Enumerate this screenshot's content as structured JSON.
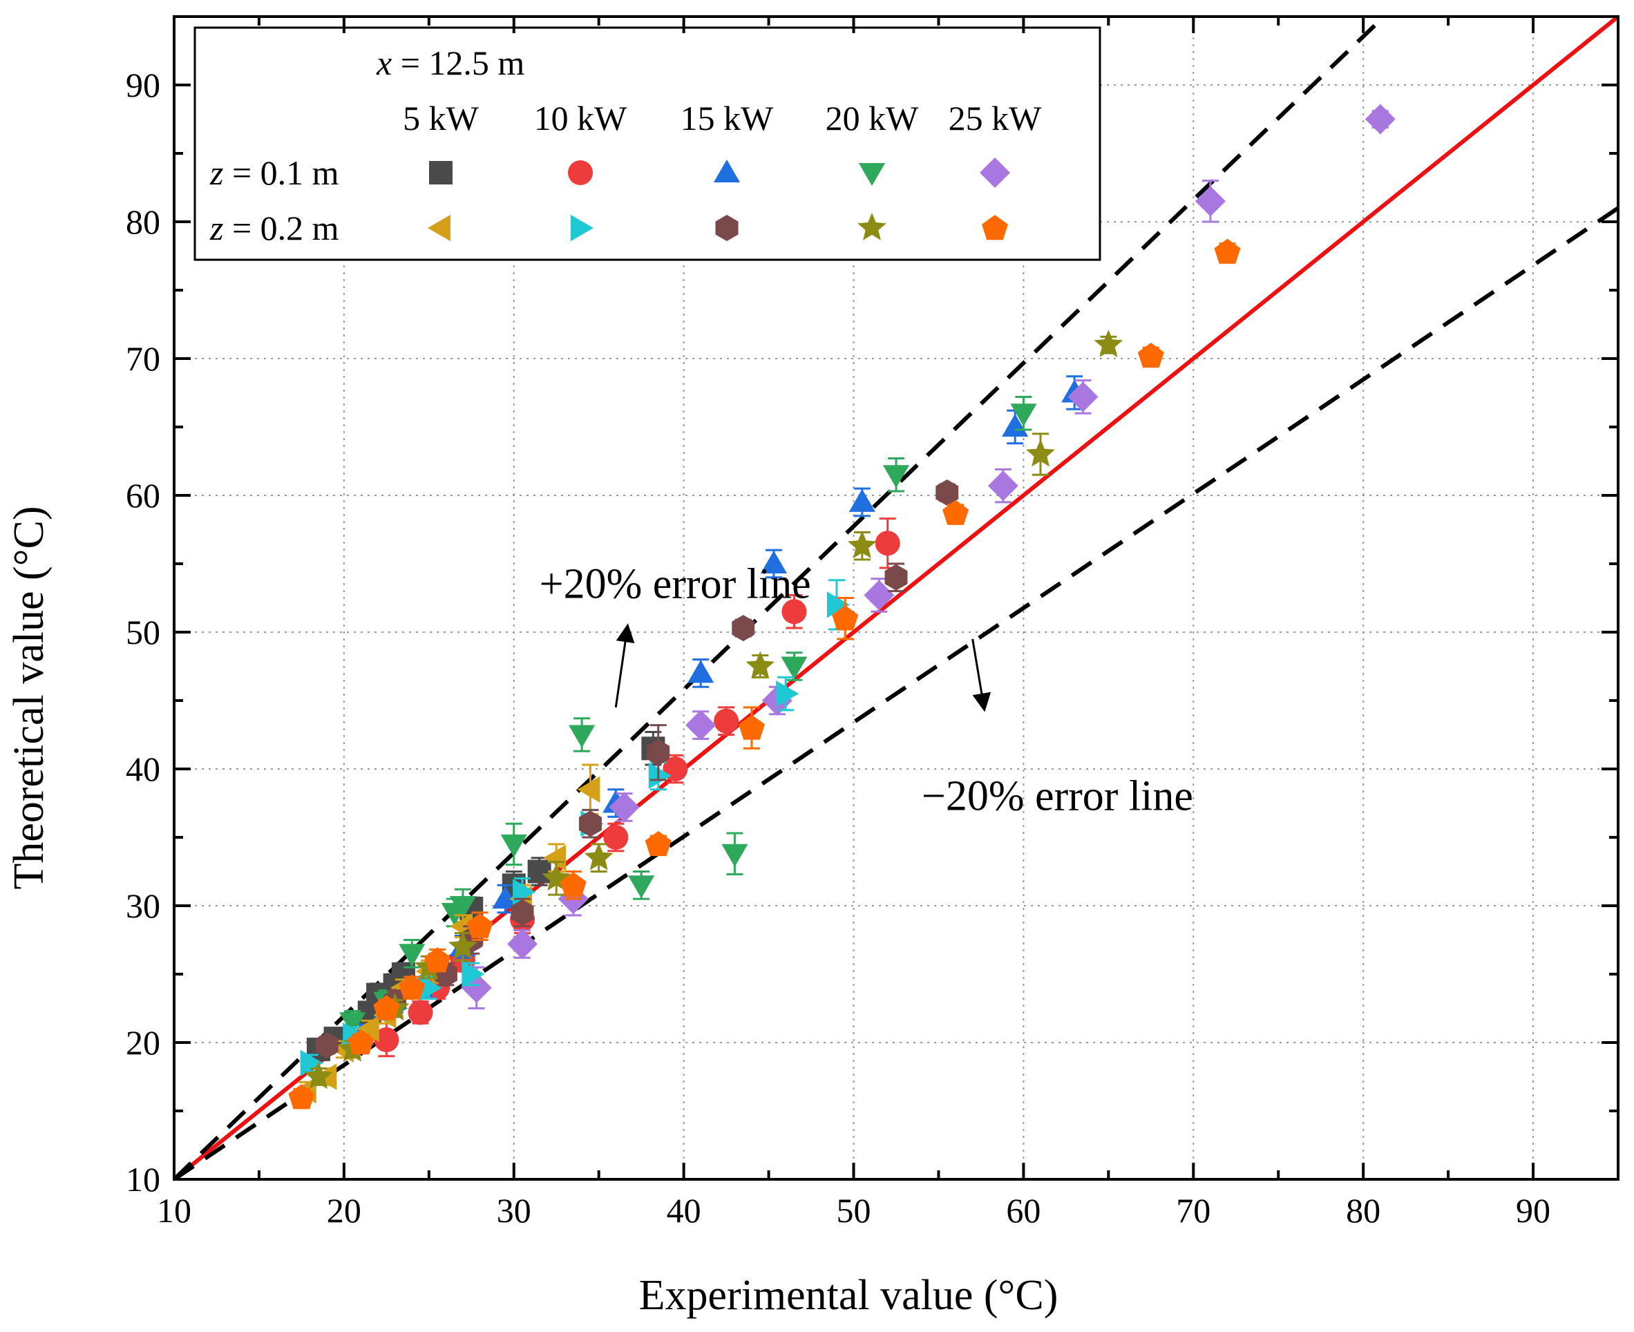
{
  "chart_data": {
    "type": "scatter",
    "title": "",
    "xlabel": "Experimental value (°C)",
    "ylabel": "Theoretical value (°C)",
    "xlim": [
      10,
      95
    ],
    "ylim": [
      10,
      95
    ],
    "xticks": [
      "10",
      "20",
      "30",
      "40",
      "50",
      "60",
      "70",
      "80",
      "90"
    ],
    "yticks": [
      "10",
      "20",
      "30",
      "40",
      "50",
      "60",
      "70",
      "80",
      "90"
    ],
    "grid": true,
    "legend": {
      "position": "top-left",
      "title": "x = 12.5 m",
      "title_var": "x",
      "title_rest": " = 12.5 m",
      "columns": [
        "5 kW",
        "10 kW",
        "15 kW",
        "20 kW",
        "25 kW"
      ],
      "rows": [
        {
          "var": "z",
          "label": " = 0.1 m"
        },
        {
          "var": "z",
          "label": " = 0.2 m"
        }
      ]
    },
    "lines": [
      {
        "name": "y = x",
        "points": [
          [
            10,
            10
          ],
          [
            95,
            95
          ]
        ],
        "color": "#ee1111",
        "style": "solid"
      },
      {
        "name": "+20% error line",
        "points": [
          [
            10,
            10
          ],
          [
            80.8,
            94.5
          ]
        ],
        "color": "#000000",
        "style": "dashed"
      },
      {
        "name": "-20% error line",
        "points": [
          [
            10,
            10
          ],
          [
            95,
            81
          ]
        ],
        "color": "#000000",
        "style": "dashed"
      }
    ],
    "annotations": [
      {
        "text": "+20% error line",
        "x": 31.5,
        "y": 52.5,
        "arrow_from": [
          36,
          44.5
        ],
        "arrow_to": [
          36.7,
          50.5
        ]
      },
      {
        "text": "−20% error line",
        "x": 54,
        "y": 37,
        "arrow_from": [
          57,
          49.5
        ],
        "arrow_to": [
          57.7,
          44.3
        ]
      }
    ],
    "series": [
      {
        "name": "z = 0.1 m, 5 kW",
        "marker": "square",
        "color": "#4a4a4a",
        "points": [
          [
            18.5,
            19.5,
            0.6
          ],
          [
            19.5,
            20.3,
            0.6
          ],
          [
            21.5,
            22.2,
            0.6
          ],
          [
            22,
            23.5,
            0.8
          ],
          [
            23,
            24.2,
            0.8
          ],
          [
            23.5,
            25,
            0.8
          ],
          [
            27.5,
            28,
            0.8
          ],
          [
            27.5,
            29.8,
            0.8
          ],
          [
            30,
            31.5,
            1
          ],
          [
            31.5,
            32.5,
            1
          ],
          [
            38.2,
            41.5,
            1.2
          ]
        ]
      },
      {
        "name": "z = 0.1 m, 10 kW",
        "marker": "circle",
        "color": "#ee3b3b",
        "points": [
          [
            22.5,
            20.2,
            1.2
          ],
          [
            24.5,
            22.2,
            0.8
          ],
          [
            25.5,
            24,
            0.8
          ],
          [
            27,
            26,
            0.8
          ],
          [
            30.5,
            29,
            1
          ],
          [
            36,
            35,
            1
          ],
          [
            39.5,
            40,
            1
          ],
          [
            42.5,
            43.5,
            1
          ],
          [
            46.5,
            51.5,
            1.2
          ],
          [
            52,
            56.5,
            1.8
          ]
        ]
      },
      {
        "name": "z = 0.1 m, 15 kW",
        "marker": "triangle-up",
        "color": "#1f6fe0",
        "points": [
          [
            21,
            20.5,
            0.8
          ],
          [
            22.5,
            22.5,
            0.8
          ],
          [
            24.5,
            24,
            0.8
          ],
          [
            27,
            27,
            0.8
          ],
          [
            29.5,
            30.5,
            1
          ],
          [
            36,
            37.5,
            1
          ],
          [
            41,
            47,
            1
          ],
          [
            45.3,
            55,
            1
          ],
          [
            50.5,
            59.5,
            1
          ],
          [
            59.5,
            65,
            1.2
          ],
          [
            63,
            67.5,
            1.2
          ]
        ]
      },
      {
        "name": "z = 0.1 m, 20 kW",
        "marker": "triangle-down",
        "color": "#2ea85a",
        "points": [
          [
            20.5,
            21.5,
            0.8
          ],
          [
            22.5,
            23,
            0.8
          ],
          [
            24,
            26.5,
            1
          ],
          [
            26.5,
            29.5,
            1
          ],
          [
            27,
            30,
            1.2
          ],
          [
            30,
            34.5,
            1.5
          ],
          [
            34,
            42.5,
            1.2
          ],
          [
            37.5,
            31.5,
            1
          ],
          [
            43,
            33.8,
            1.5
          ],
          [
            46.5,
            47.5,
            1
          ],
          [
            52.5,
            61.5,
            1.2
          ],
          [
            60,
            66,
            1.2
          ]
        ]
      },
      {
        "name": "z = 0.1 m, 25 kW",
        "marker": "diamond",
        "color": "#a877e0",
        "points": [
          [
            27.8,
            24,
            1.5
          ],
          [
            30.5,
            27.2,
            1
          ],
          [
            33.5,
            30.5,
            1.2
          ],
          [
            36.5,
            37.2,
            1
          ],
          [
            41,
            43.2,
            1
          ],
          [
            45.5,
            45,
            1
          ],
          [
            51.5,
            52.7,
            1.2
          ],
          [
            58.8,
            60.7,
            1.2
          ],
          [
            63.5,
            67.2,
            1.2
          ],
          [
            71,
            81.5,
            1.5
          ],
          [
            81,
            87.5,
            0.6
          ]
        ]
      },
      {
        "name": "z = 0.2 m, 5 kW",
        "marker": "triangle-left",
        "color": "#d4a017",
        "points": [
          [
            17.8,
            16.5,
            0.6
          ],
          [
            19,
            17.5,
            0.6
          ],
          [
            20,
            19.5,
            0.6
          ],
          [
            21.5,
            21,
            0.6
          ],
          [
            22.5,
            22,
            0.6
          ],
          [
            23.5,
            24,
            0.6
          ],
          [
            25,
            25.2,
            0.8
          ],
          [
            27,
            28.5,
            0.8
          ],
          [
            30.5,
            30.5,
            1
          ],
          [
            32.5,
            33.5,
            1
          ],
          [
            34.5,
            38.5,
            1.8
          ]
        ]
      },
      {
        "name": "z = 0.2 m, 10 kW",
        "marker": "triangle-right",
        "color": "#1ec8d4",
        "points": [
          [
            18,
            18.5,
            0.6
          ],
          [
            20.5,
            20.5,
            0.6
          ],
          [
            23,
            22.5,
            0.6
          ],
          [
            25,
            24,
            0.8
          ],
          [
            27.5,
            25,
            0.8
          ],
          [
            30.5,
            31,
            1
          ],
          [
            34.5,
            36,
            1
          ],
          [
            38.5,
            39.5,
            1
          ],
          [
            46,
            45.5,
            1.2
          ],
          [
            49,
            52,
            1.8
          ]
        ]
      },
      {
        "name": "z = 0.2 m, 15 kW",
        "marker": "hexagon",
        "color": "#7a4a4a",
        "points": [
          [
            19,
            19.8,
            0.6
          ],
          [
            23,
            23,
            0.8
          ],
          [
            26,
            25,
            0.8
          ],
          [
            27.5,
            27.5,
            1
          ],
          [
            30.5,
            29.5,
            1
          ],
          [
            34.5,
            36,
            1
          ],
          [
            38.5,
            41.2,
            2
          ],
          [
            43.5,
            50.3,
            0.6
          ],
          [
            52.5,
            54,
            1
          ],
          [
            55.5,
            60.2,
            0.6
          ]
        ]
      },
      {
        "name": "z = 0.2 m, 20 kW",
        "marker": "star",
        "color": "#8c8c14",
        "points": [
          [
            18.5,
            17.5,
            0.6
          ],
          [
            20.5,
            19.5,
            0.6
          ],
          [
            23,
            22.5,
            0.6
          ],
          [
            25,
            25.5,
            0.8
          ],
          [
            27,
            27,
            1
          ],
          [
            32.5,
            32,
            1.2
          ],
          [
            35,
            33.5,
            1
          ],
          [
            44.5,
            47.5,
            0.8
          ],
          [
            50.5,
            56.3,
            1
          ],
          [
            61,
            63,
            1.5
          ],
          [
            65,
            71,
            0.6
          ]
        ]
      },
      {
        "name": "z = 0.2 m, 25 kW",
        "marker": "pentagon",
        "color": "#ff6a00",
        "points": [
          [
            17.5,
            16,
            0.6
          ],
          [
            21,
            20,
            0.6
          ],
          [
            22.5,
            22.5,
            0.6
          ],
          [
            24,
            24,
            0.8
          ],
          [
            25.5,
            26,
            0.8
          ],
          [
            28,
            28.5,
            1
          ],
          [
            33.5,
            31.5,
            1
          ],
          [
            38.5,
            34.5,
            0.6
          ],
          [
            44,
            43,
            1.5
          ],
          [
            49.5,
            51,
            1.5
          ],
          [
            56,
            58.7,
            0.6
          ],
          [
            67.5,
            70.2,
            0.6
          ],
          [
            72,
            77.8,
            0.6
          ]
        ]
      }
    ]
  }
}
